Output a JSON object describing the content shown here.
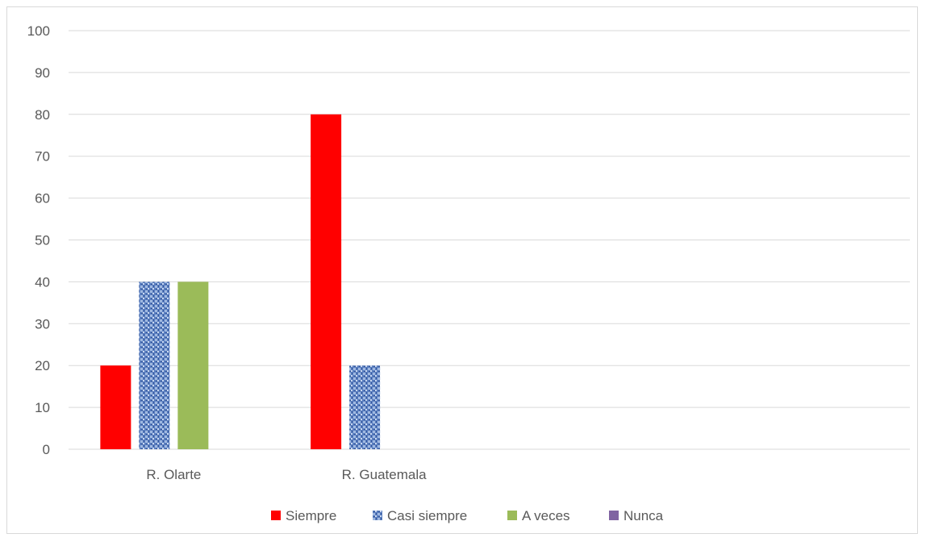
{
  "chart_data": {
    "type": "bar",
    "categories": [
      "R. Olarte",
      "R. Guatemala",
      "",
      ""
    ],
    "series": [
      {
        "name": "Siempre",
        "color": "#ff0000",
        "pattern": "solid",
        "values": [
          20,
          80,
          null,
          null
        ]
      },
      {
        "name": "Casi siempre",
        "color": "#4f81bd",
        "pattern": "textured",
        "values": [
          40,
          20,
          null,
          null
        ]
      },
      {
        "name": "A veces",
        "color": "#9bbb59",
        "pattern": "solid",
        "values": [
          40,
          null,
          null,
          null
        ]
      },
      {
        "name": "Nunca",
        "color": "#8064a2",
        "pattern": "solid",
        "values": [
          null,
          null,
          null,
          null
        ]
      }
    ],
    "y_ticks": [
      "0",
      "10",
      "20",
      "30",
      "40",
      "50",
      "60",
      "70",
      "80",
      "90",
      "100"
    ],
    "ylim": [
      0,
      100
    ],
    "grid": true,
    "legend_position": "bottom",
    "title": "",
    "xlabel": "",
    "ylabel": ""
  }
}
